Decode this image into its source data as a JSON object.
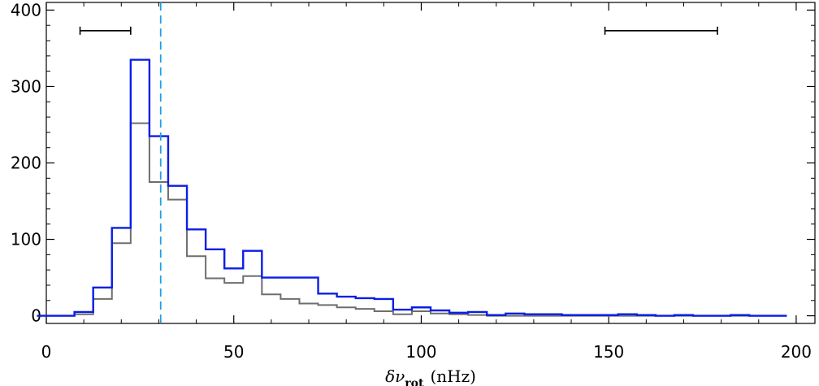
{
  "chart_data": {
    "type": "histogram",
    "title": "",
    "xlabel": {
      "symbol": "δν",
      "subscript": "rot",
      "unit": "(nHz)"
    },
    "ylabel": "",
    "xlim": [
      0,
      205
    ],
    "ylim": [
      -10,
      410
    ],
    "xticks": [
      "0",
      "50",
      "100",
      "150",
      "200"
    ],
    "xtick_values": [
      0,
      50,
      100,
      150,
      200
    ],
    "yticks": [
      "0",
      "100",
      "200",
      "300",
      "400"
    ],
    "ytick_values": [
      0,
      100,
      200,
      300,
      400
    ],
    "bin_width": 5,
    "bin_start": -2.5,
    "series": [
      {
        "color": "#0a1ee6",
        "values": [
          0,
          0,
          5,
          37,
          115,
          335,
          235,
          170,
          113,
          87,
          62,
          85,
          50,
          50,
          50,
          29,
          25,
          23,
          22,
          8,
          11,
          7,
          4,
          5,
          1,
          3,
          2,
          2,
          1,
          1,
          1,
          2,
          1,
          0,
          1,
          0,
          0,
          1,
          0,
          0
        ]
      },
      {
        "color": "#6e6e6e",
        "values": [
          0,
          0,
          2,
          22,
          95,
          252,
          175,
          152,
          78,
          49,
          43,
          52,
          28,
          22,
          16,
          14,
          11,
          9,
          6,
          2,
          6,
          3,
          2,
          1,
          0,
          0,
          0,
          0,
          0,
          0,
          0,
          0,
          0,
          0,
          0,
          0,
          0,
          0,
          0,
          0
        ]
      }
    ],
    "vline": {
      "x": 30.5,
      "color": "#1ea0e6",
      "style": "dashed"
    },
    "error_bars": [
      {
        "x1": 9,
        "x2": 22.5,
        "y": 373
      },
      {
        "x1": 149,
        "x2": 179,
        "y": 373
      }
    ],
    "grid": false,
    "legend": "none"
  }
}
